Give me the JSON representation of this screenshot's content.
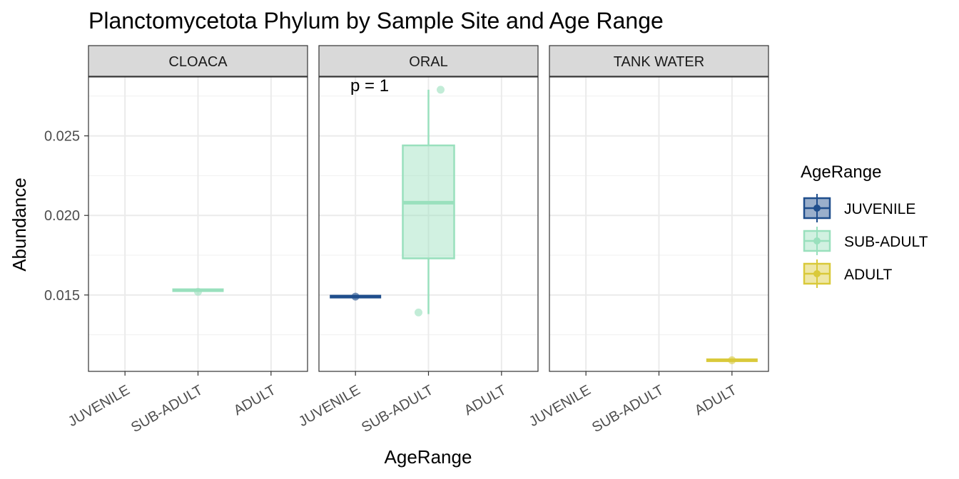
{
  "chart_data": {
    "type": "boxplot",
    "title": "Planctomycetota Phylum by Sample Site and Age Range",
    "xlabel": "AgeRange",
    "ylabel": "Abundance",
    "categories": [
      "JUVENILE",
      "SUB-ADULT",
      "ADULT"
    ],
    "y_ticks": [
      "0.015",
      "0.020",
      "0.025"
    ],
    "y_tick_values": [
      0.015,
      0.02,
      0.025
    ],
    "ylim": [
      0.0102,
      0.0287
    ],
    "grid": true,
    "legend_position": "right",
    "legend": {
      "title": "AgeRange",
      "entries": [
        {
          "label": "JUVENILE",
          "color": "#1f4e8c"
        },
        {
          "label": "SUB-ADULT",
          "color": "#99e0bd"
        },
        {
          "label": "ADULT",
          "color": "#d9c93a"
        }
      ]
    },
    "panels": [
      {
        "facet": "CLOACA",
        "annotation": "",
        "boxes": [
          {
            "category": "SUB-ADULT",
            "q1": 0.0153,
            "median": 0.0153,
            "q3": 0.0153,
            "whisker_low": 0.0153,
            "whisker_high": 0.0153
          }
        ],
        "points": [
          {
            "category": "SUB-ADULT",
            "y": 0.0152
          }
        ]
      },
      {
        "facet": "ORAL",
        "annotation": "p = 1",
        "boxes": [
          {
            "category": "JUVENILE",
            "q1": 0.0149,
            "median": 0.0149,
            "q3": 0.0149,
            "whisker_low": 0.0149,
            "whisker_high": 0.0149
          },
          {
            "category": "SUB-ADULT",
            "q1": 0.0173,
            "median": 0.0208,
            "q3": 0.0244,
            "whisker_low": 0.0138,
            "whisker_high": 0.0279
          }
        ],
        "points": [
          {
            "category": "JUVENILE",
            "y": 0.0149
          },
          {
            "category": "SUB-ADULT",
            "y": 0.0279
          },
          {
            "category": "SUB-ADULT",
            "y": 0.0139
          }
        ]
      },
      {
        "facet": "TANK WATER",
        "annotation": "",
        "boxes": [
          {
            "category": "ADULT",
            "q1": 0.0109,
            "median": 0.0109,
            "q3": 0.0109,
            "whisker_low": 0.0109,
            "whisker_high": 0.0109
          }
        ],
        "points": [
          {
            "category": "ADULT",
            "y": 0.0109
          }
        ]
      }
    ]
  }
}
